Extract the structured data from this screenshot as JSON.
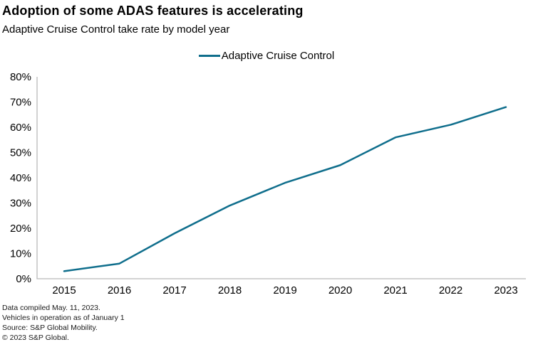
{
  "header": {
    "title": "Adoption of some ADAS features is accelerating",
    "subtitle": "Adaptive Cruise Control take rate by model year"
  },
  "legend": {
    "items": [
      {
        "label": "Adaptive Cruise Control",
        "color": "#0f6e8c"
      }
    ]
  },
  "footnotes": [
    "Data compiled May. 11, 2023.",
    "Vehicles in operation as of January 1",
    "Source: S&P Global Mobility.",
    "© 2023 S&P Global."
  ],
  "chart_data": {
    "type": "line",
    "title": "Adoption of some ADAS features is accelerating",
    "subtitle": "Adaptive Cruise Control take rate by model year",
    "categories": [
      "2015",
      "2016",
      "2017",
      "2018",
      "2019",
      "2020",
      "2021",
      "2022",
      "2023"
    ],
    "series": [
      {
        "name": "Adaptive Cruise Control",
        "values": [
          3,
          6,
          18,
          29,
          38,
          45,
          56,
          61,
          68
        ]
      }
    ],
    "xlabel": "",
    "ylabel": "",
    "ylim": [
      0,
      80
    ],
    "ytick_step": 10,
    "ytick_format": "percent",
    "grid": false,
    "legend_position": "top-center",
    "line_color": "#0f6e8c",
    "axis_color": "#b9b9b9"
  }
}
